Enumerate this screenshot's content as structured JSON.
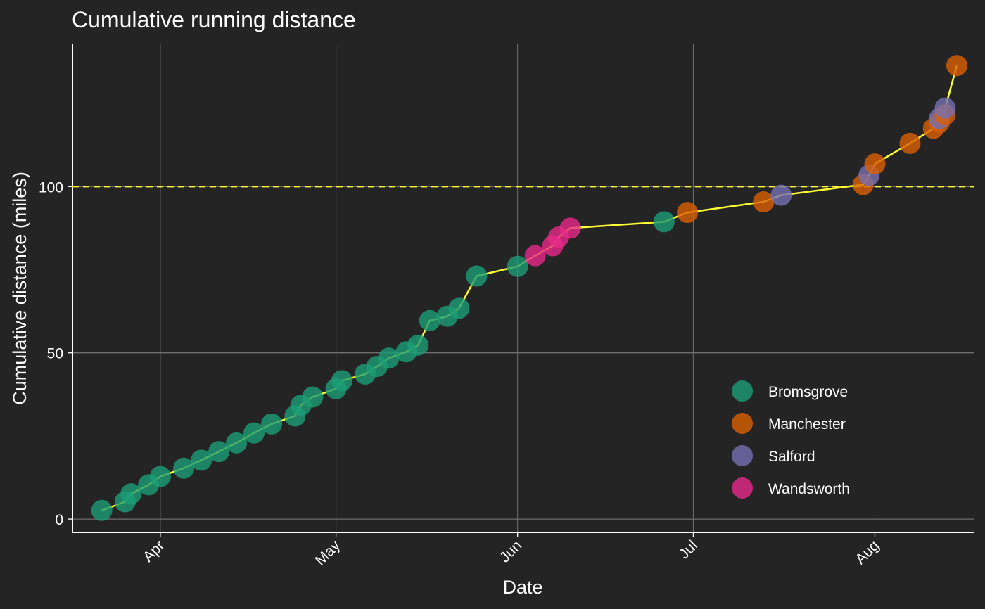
{
  "chart_data": {
    "type": "scatter",
    "title": "Cumulative running distance",
    "xlabel": "Date",
    "ylabel": "Cumulative distance (miles)",
    "x_type": "date",
    "xlim": [
      "2023-03-17",
      "2023-08-18"
    ],
    "ylim": [
      -4,
      143
    ],
    "x_ticks": [
      {
        "date": "2023-04-01",
        "label": "Apr"
      },
      {
        "date": "2023-05-01",
        "label": "May"
      },
      {
        "date": "2023-06-01",
        "label": "Jun"
      },
      {
        "date": "2023-07-01",
        "label": "Jul"
      },
      {
        "date": "2023-08-01",
        "label": "Aug"
      }
    ],
    "y_ticks": [
      0,
      50,
      100
    ],
    "grid": true,
    "reference_line": {
      "y": 100,
      "color": "#ffff33",
      "style": "dashed"
    },
    "line_color": "#ffff33",
    "legend": {
      "position": "bottom-right",
      "entries": [
        {
          "name": "Bromsgrove",
          "color": "#1b9e77"
        },
        {
          "name": "Manchester",
          "color": "#d95f02"
        },
        {
          "name": "Salford",
          "color": "#7570b3"
        },
        {
          "name": "Wandsworth",
          "color": "#e7298a"
        }
      ]
    },
    "points": [
      {
        "date": "2023-03-22",
        "y": 2.6,
        "location": "Bromsgrove"
      },
      {
        "date": "2023-03-26",
        "y": 5.2,
        "location": "Bromsgrove"
      },
      {
        "date": "2023-03-27",
        "y": 7.6,
        "location": "Bromsgrove"
      },
      {
        "date": "2023-03-30",
        "y": 10.3,
        "location": "Bromsgrove"
      },
      {
        "date": "2023-04-01",
        "y": 12.8,
        "location": "Bromsgrove"
      },
      {
        "date": "2023-04-05",
        "y": 15.3,
        "location": "Bromsgrove"
      },
      {
        "date": "2023-04-08",
        "y": 17.7,
        "location": "Bromsgrove"
      },
      {
        "date": "2023-04-11",
        "y": 20.3,
        "location": "Bromsgrove"
      },
      {
        "date": "2023-04-14",
        "y": 22.9,
        "location": "Bromsgrove"
      },
      {
        "date": "2023-04-17",
        "y": 25.9,
        "location": "Bromsgrove"
      },
      {
        "date": "2023-04-20",
        "y": 28.6,
        "location": "Bromsgrove"
      },
      {
        "date": "2023-04-24",
        "y": 31.0,
        "location": "Bromsgrove"
      },
      {
        "date": "2023-04-25",
        "y": 34.2,
        "location": "Bromsgrove"
      },
      {
        "date": "2023-04-27",
        "y": 36.7,
        "location": "Bromsgrove"
      },
      {
        "date": "2023-05-01",
        "y": 39.2,
        "location": "Bromsgrove"
      },
      {
        "date": "2023-05-02",
        "y": 41.6,
        "location": "Bromsgrove"
      },
      {
        "date": "2023-05-06",
        "y": 43.6,
        "location": "Bromsgrove"
      },
      {
        "date": "2023-05-08",
        "y": 45.9,
        "location": "Bromsgrove"
      },
      {
        "date": "2023-05-10",
        "y": 48.4,
        "location": "Bromsgrove"
      },
      {
        "date": "2023-05-13",
        "y": 50.3,
        "location": "Bromsgrove"
      },
      {
        "date": "2023-05-15",
        "y": 52.3,
        "location": "Bromsgrove"
      },
      {
        "date": "2023-05-17",
        "y": 59.7,
        "location": "Bromsgrove"
      },
      {
        "date": "2023-05-20",
        "y": 61.0,
        "location": "Bromsgrove"
      },
      {
        "date": "2023-05-22",
        "y": 63.4,
        "location": "Bromsgrove"
      },
      {
        "date": "2023-05-25",
        "y": 73.1,
        "location": "Bromsgrove"
      },
      {
        "date": "2023-06-01",
        "y": 76.0,
        "location": "Bromsgrove"
      },
      {
        "date": "2023-06-04",
        "y": 79.2,
        "location": "Wandsworth"
      },
      {
        "date": "2023-06-07",
        "y": 82.2,
        "location": "Wandsworth"
      },
      {
        "date": "2023-06-08",
        "y": 84.8,
        "location": "Wandsworth"
      },
      {
        "date": "2023-06-10",
        "y": 87.5,
        "location": "Wandsworth"
      },
      {
        "date": "2023-06-26",
        "y": 89.4,
        "location": "Bromsgrove"
      },
      {
        "date": "2023-06-30",
        "y": 92.2,
        "location": "Manchester"
      },
      {
        "date": "2023-07-13",
        "y": 95.4,
        "location": "Manchester"
      },
      {
        "date": "2023-07-16",
        "y": 97.4,
        "location": "Salford"
      },
      {
        "date": "2023-07-30",
        "y": 100.6,
        "location": "Manchester"
      },
      {
        "date": "2023-07-31",
        "y": 103.4,
        "location": "Salford"
      },
      {
        "date": "2023-08-01",
        "y": 106.8,
        "location": "Manchester"
      },
      {
        "date": "2023-08-07",
        "y": 113.0,
        "location": "Manchester"
      },
      {
        "date": "2023-08-11",
        "y": 117.5,
        "location": "Manchester"
      },
      {
        "date": "2023-08-12",
        "y": 119.3,
        "location": "Manchester"
      },
      {
        "date": "2023-08-12",
        "y": 120.5,
        "location": "Salford"
      },
      {
        "date": "2023-08-13",
        "y": 121.6,
        "location": "Manchester"
      },
      {
        "date": "2023-08-13",
        "y": 123.6,
        "location": "Salford"
      },
      {
        "date": "2023-08-15",
        "y": 136.4,
        "location": "Manchester"
      }
    ]
  }
}
